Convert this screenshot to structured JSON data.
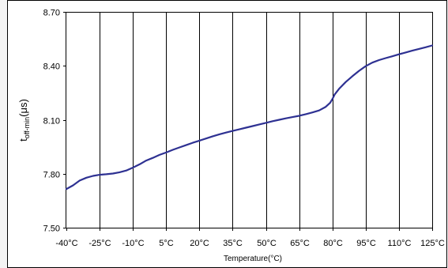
{
  "chart_data": {
    "type": "line",
    "title": "",
    "xlabel": "Temperature(°C)",
    "ylabel_main": "t",
    "ylabel_sub": "off-min",
    "ylabel_unit": "(μs)",
    "x_ticks": [
      "-40°C",
      "-25°C",
      "-10°C",
      "5°C",
      "20°C",
      "35°C",
      "50°C",
      "65°C",
      "80°C",
      "95°C",
      "110°C",
      "125°C"
    ],
    "x_tick_values": [
      -40,
      -25,
      -10,
      5,
      20,
      35,
      50,
      65,
      80,
      95,
      110,
      125
    ],
    "y_ticks": [
      "7.50",
      "7.80",
      "8.10",
      "8.40",
      "8.70"
    ],
    "y_tick_values": [
      7.5,
      7.8,
      8.1,
      8.4,
      8.7
    ],
    "xlim": [
      -40,
      125
    ],
    "ylim": [
      7.5,
      8.7
    ],
    "grid": "vertical",
    "series": [
      {
        "color": "#2e3192",
        "x": [
          -40,
          -37,
          -34,
          -31,
          -28,
          -25,
          -22,
          -19,
          -16,
          -13,
          -10,
          -7,
          -4,
          -1,
          2,
          5,
          8,
          11,
          14,
          17,
          20,
          23,
          26,
          29,
          32,
          35,
          38,
          41,
          44,
          47,
          50,
          53,
          56,
          59,
          62,
          65,
          68,
          71,
          74,
          77,
          79,
          80,
          81,
          83,
          86,
          89,
          92,
          95,
          98,
          101,
          104,
          107,
          110,
          113,
          116,
          119,
          122,
          125
        ],
        "y": [
          7.715,
          7.735,
          7.762,
          7.778,
          7.788,
          7.794,
          7.797,
          7.801,
          7.808,
          7.818,
          7.834,
          7.852,
          7.873,
          7.888,
          7.905,
          7.918,
          7.933,
          7.946,
          7.959,
          7.972,
          7.984,
          7.996,
          8.008,
          8.019,
          8.029,
          8.038,
          8.047,
          8.056,
          8.065,
          8.074,
          8.083,
          8.092,
          8.1,
          8.108,
          8.115,
          8.122,
          8.131,
          8.141,
          8.152,
          8.172,
          8.195,
          8.215,
          8.24,
          8.272,
          8.31,
          8.342,
          8.372,
          8.398,
          8.418,
          8.432,
          8.443,
          8.453,
          8.464,
          8.474,
          8.484,
          8.494,
          8.503,
          8.513
        ]
      }
    ]
  }
}
